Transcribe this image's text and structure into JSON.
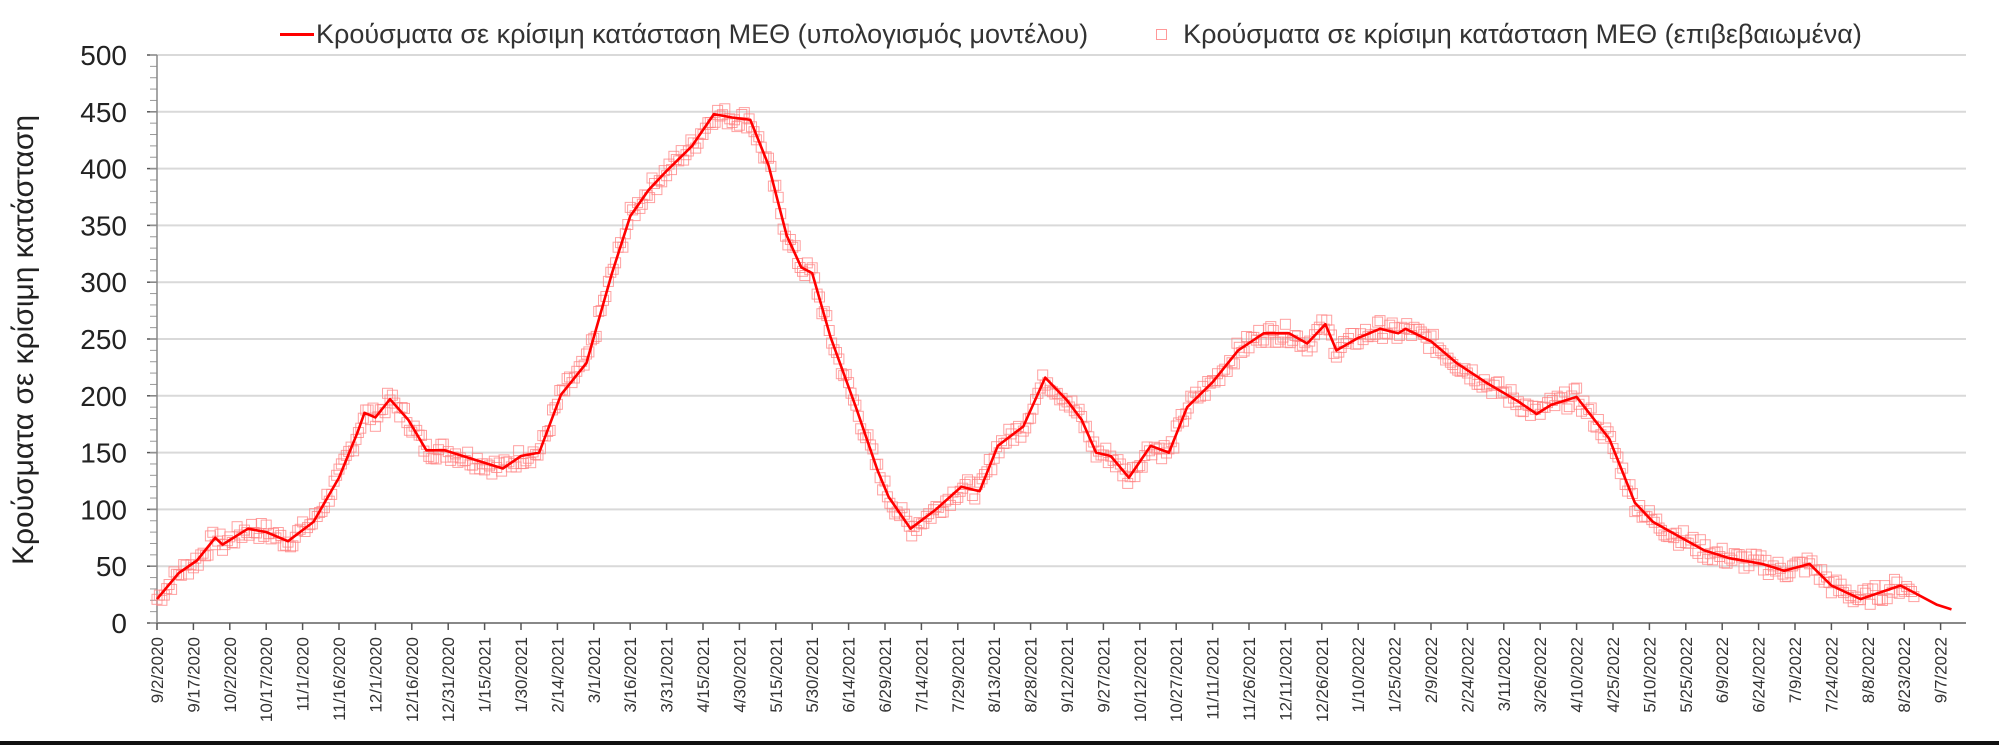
{
  "legend": {
    "model_label": "Κρούσματα σε κρίσιμη κατάσταση ΜΕΘ (υπολογισμός μοντέλου)",
    "confirmed_label": "Κρούσματα σε κρίσιμη κατάσταση ΜΕΘ (επιβεβαιωμένα)"
  },
  "axes": {
    "ylabel": "Κρούσματα σε κρίσιμη κατάσταση"
  },
  "colors": {
    "model_line": "#ff0000",
    "confirmed_marker": "#ff8080",
    "grid": "#d9d9d9",
    "axis": "#888888"
  },
  "chart_data": {
    "type": "line",
    "title": "",
    "xlabel": "",
    "ylabel": "Κρούσματα σε κρίσιμη κατάσταση",
    "ylim": [
      0,
      500
    ],
    "yticks": [
      0,
      50,
      100,
      150,
      200,
      250,
      300,
      350,
      400,
      450,
      500
    ],
    "grid": true,
    "legend_position": "top",
    "x_tick_interval_days": 15,
    "categories": [
      "9/2/2020",
      "9/17/2020",
      "10/2/2020",
      "10/17/2020",
      "11/1/2020",
      "11/16/2020",
      "12/1/2020",
      "12/16/2020",
      "12/31/2020",
      "1/15/2021",
      "1/30/2021",
      "2/14/2021",
      "3/1/2021",
      "3/16/2021",
      "3/31/2021",
      "4/15/2021",
      "4/30/2021",
      "5/15/2021",
      "5/30/2021",
      "6/14/2021",
      "6/29/2021",
      "7/14/2021",
      "7/29/2021",
      "8/13/2021",
      "8/28/2021",
      "9/12/2021",
      "9/27/2021",
      "10/12/2021",
      "10/27/2021",
      "11/11/2021",
      "11/26/2021",
      "12/11/2021",
      "12/26/2021",
      "1/10/2022",
      "1/25/2022",
      "2/9/2022",
      "2/24/2022",
      "3/11/2022",
      "3/26/2022",
      "4/10/2022",
      "4/25/2022",
      "5/10/2022",
      "5/25/2022",
      "6/9/2022",
      "6/24/2022",
      "7/9/2022",
      "7/24/2022",
      "8/8/2022",
      "8/23/2022",
      "9/7/2022"
    ],
    "series": [
      {
        "name": "Κρούσματα σε κρίσιμη κατάσταση ΜΕΘ (υπολογισμός μοντέλου)",
        "style": "line",
        "x_tick_index": [
          0,
          0.6,
          1.1,
          1.6,
          1.8,
          2.5,
          3.0,
          3.6,
          4.3,
          5.0,
          5.5,
          5.7,
          6.0,
          6.4,
          6.9,
          7.4,
          7.9,
          8.6,
          9.5,
          10.0,
          10.5,
          11.1,
          11.8,
          12.5,
          13.0,
          13.5,
          14.0,
          14.7,
          15.3,
          15.8,
          16.3,
          16.8,
          17.3,
          17.7,
          18.0,
          18.5,
          19.2,
          19.8,
          20.1,
          20.7,
          21.4,
          22.1,
          22.6,
          23.1,
          23.8,
          24.4,
          25.0,
          25.4,
          25.8,
          26.2,
          26.7,
          27.3,
          27.8,
          28.3,
          29.0,
          29.7,
          30.4,
          31.1,
          31.6,
          32.1,
          32.4,
          33.0,
          33.6,
          34.1,
          34.3,
          35.0,
          35.7,
          36.5,
          37.4,
          37.9,
          38.3,
          39.0,
          39.9,
          40.6,
          41.1,
          41.6,
          42.5,
          43.2,
          44.1,
          44.7,
          45.4,
          46.0,
          46.8,
          47.9,
          48.9,
          49.3
        ],
        "values": [
          21,
          44,
          55,
          75,
          69,
          83,
          80,
          72,
          89,
          128,
          167,
          185,
          181,
          197,
          179,
          152,
          152,
          145,
          136,
          147,
          150,
          201,
          229,
          308,
          358,
          381,
          398,
          420,
          448,
          445,
          443,
          403,
          341,
          313,
          308,
          252,
          190,
          134,
          111,
          83,
          100,
          120,
          116,
          156,
          173,
          216,
          196,
          179,
          150,
          147,
          128,
          156,
          150,
          190,
          212,
          240,
          255,
          255,
          246,
          263,
          240,
          251,
          259,
          255,
          259,
          248,
          229,
          212,
          195,
          184,
          192,
          199,
          162,
          106,
          89,
          80,
          64,
          57,
          52,
          46,
          52,
          33,
          21,
          33,
          16,
          12
        ]
      },
      {
        "name": "Κρούσματα σε κρίσιμη κατάσταση ΜΕΘ (επιβεβαιωμένα)",
        "style": "markers-square-hollow",
        "note": "daily scatter closely tracking the model line (approx. ±10)"
      }
    ]
  }
}
